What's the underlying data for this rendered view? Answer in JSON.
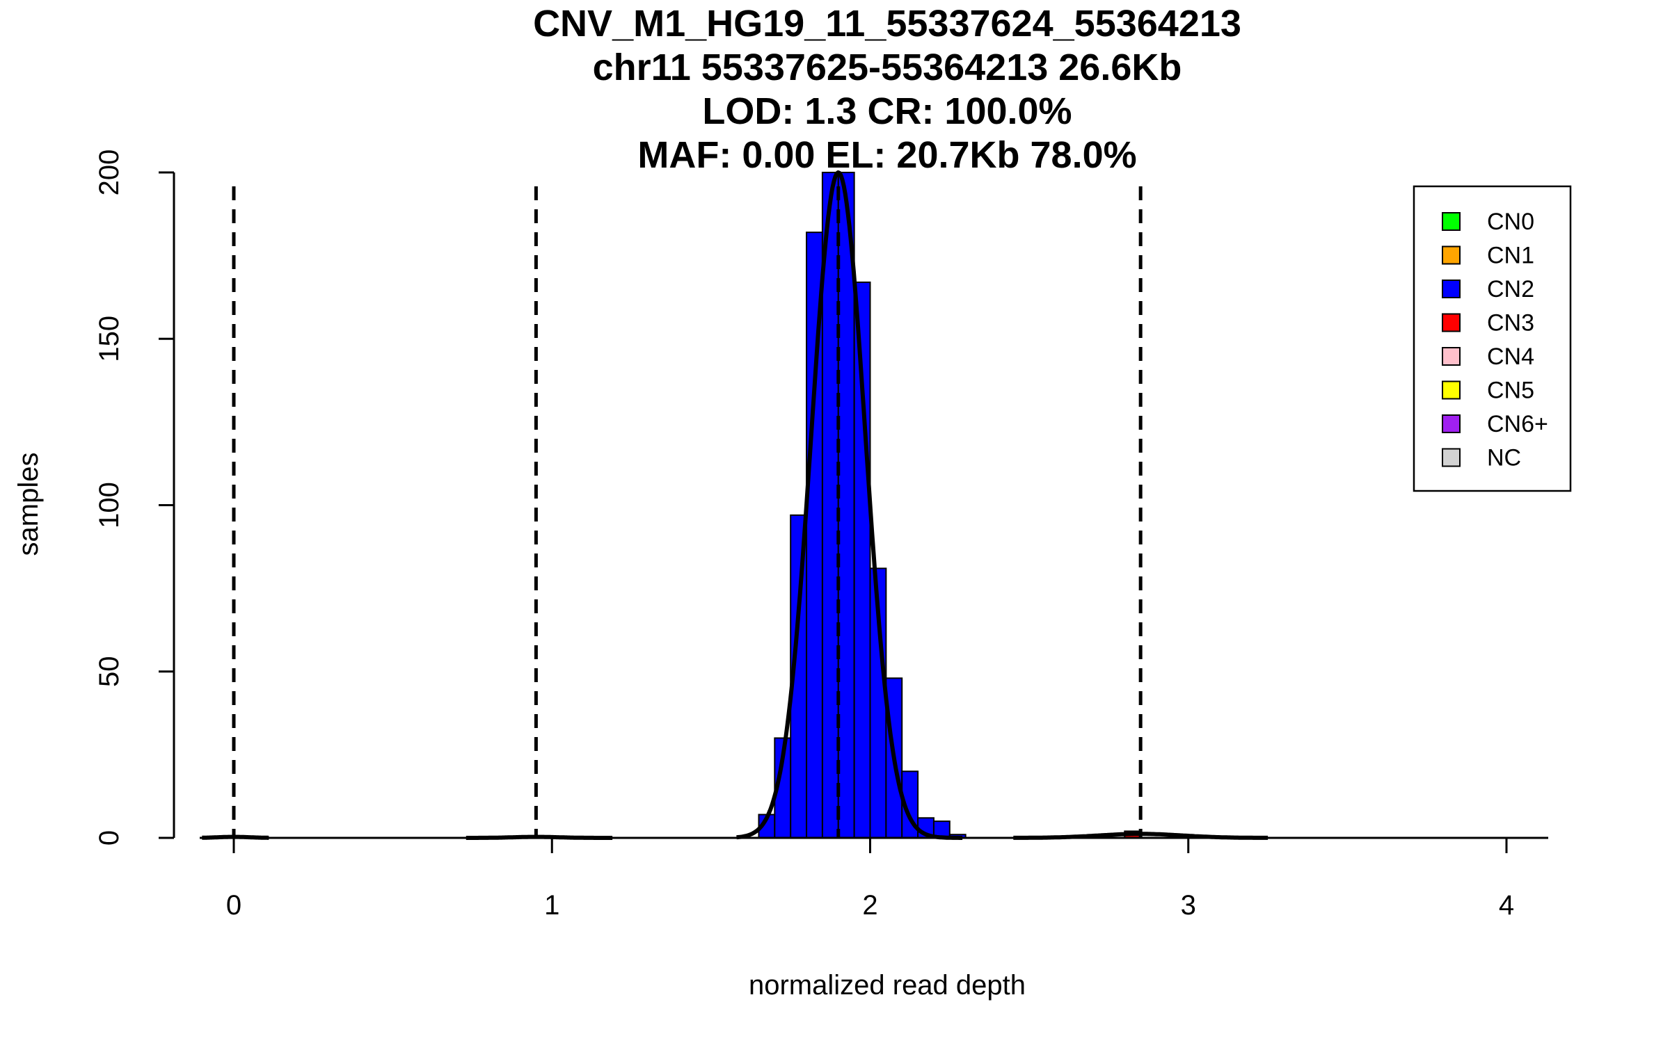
{
  "chart_data": {
    "type": "bar",
    "title_lines": [
      "CNV_M1_HG19_11_55337624_55364213",
      "chr11 55337625-55364213 26.6Kb",
      "LOD: 1.3 CR: 100.0%",
      "MAF: 0.00 EL: 20.7Kb 78.0%"
    ],
    "xlabel": "normalized read depth",
    "ylabel": "samples",
    "xlim": [
      -0.1,
      4.13
    ],
    "ylim": [
      0,
      200
    ],
    "x_ticks": [
      "0",
      "1",
      "2",
      "3",
      "4"
    ],
    "y_ticks": [
      "0",
      "50",
      "100",
      "150",
      "200"
    ],
    "bin_width": 0.05,
    "bins": [
      {
        "x0": 1.65,
        "x1": 1.7,
        "count": 7,
        "color": "#0000FF"
      },
      {
        "x0": 1.7,
        "x1": 1.75,
        "count": 30,
        "color": "#0000FF"
      },
      {
        "x0": 1.75,
        "x1": 1.8,
        "count": 97,
        "color": "#0000FF"
      },
      {
        "x0": 1.8,
        "x1": 1.85,
        "count": 182,
        "color": "#0000FF"
      },
      {
        "x0": 1.85,
        "x1": 1.9,
        "count": 200,
        "color": "#0000FF"
      },
      {
        "x0": 1.9,
        "x1": 1.95,
        "count": 200,
        "color": "#0000FF"
      },
      {
        "x0": 1.95,
        "x1": 2.0,
        "count": 167,
        "color": "#0000FF"
      },
      {
        "x0": 2.0,
        "x1": 2.05,
        "count": 81,
        "color": "#0000FF"
      },
      {
        "x0": 2.05,
        "x1": 2.1,
        "count": 48,
        "color": "#0000FF"
      },
      {
        "x0": 2.1,
        "x1": 2.15,
        "count": 20,
        "color": "#0000FF"
      },
      {
        "x0": 2.15,
        "x1": 2.2,
        "count": 6,
        "color": "#0000FF"
      },
      {
        "x0": 2.2,
        "x1": 2.25,
        "count": 5,
        "color": "#0000FF"
      },
      {
        "x0": 2.25,
        "x1": 2.3,
        "count": 1,
        "color": "#0000FF"
      },
      {
        "x0": 2.8,
        "x1": 2.85,
        "count": 2,
        "color": "#FF0000"
      }
    ],
    "dashed_lines_x": [
      0,
      0.95,
      1.9,
      2.85
    ],
    "fit_curve": [
      {
        "mu": 0.0,
        "sigma": 0.05,
        "peak": 0.3,
        "range": [
          -0.1,
          0.11
        ]
      },
      {
        "mu": 0.95,
        "sigma": 0.07,
        "peak": 0.3,
        "range": [
          0.73,
          1.19
        ]
      },
      {
        "mu": 1.9,
        "sigma": 0.085,
        "peak": 200,
        "range": [
          1.58,
          2.29
        ]
      },
      {
        "mu": 2.85,
        "sigma": 0.13,
        "peak": 1.2,
        "range": [
          2.45,
          3.25
        ]
      }
    ],
    "legend": {
      "position": "top-right",
      "items": [
        {
          "label": "CN0",
          "color": "#00FF00"
        },
        {
          "label": "CN1",
          "color": "#FFA500"
        },
        {
          "label": "CN2",
          "color": "#0000FF"
        },
        {
          "label": "CN3",
          "color": "#FF0000"
        },
        {
          "label": "CN4",
          "color": "#FFC0CB"
        },
        {
          "label": "CN5",
          "color": "#FFFF00"
        },
        {
          "label": "CN6+",
          "color": "#A020F0"
        },
        {
          "label": "NC",
          "color": "#D3D3D3"
        }
      ]
    }
  }
}
